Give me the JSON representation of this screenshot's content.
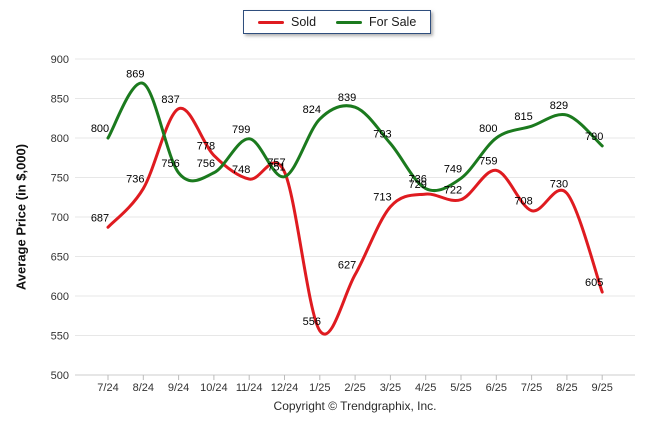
{
  "footer": {
    "copyright": "Copyright © Trendgraphix, Inc."
  },
  "chart_data": {
    "type": "line",
    "title": "",
    "xlabel": "",
    "ylabel": "Average Price (in $,000)",
    "categories": [
      "7/24",
      "8/24",
      "9/24",
      "10/24",
      "11/24",
      "12/24",
      "1/25",
      "2/25",
      "3/25",
      "4/25",
      "5/25",
      "6/25",
      "7/25",
      "8/25",
      "9/25"
    ],
    "series": [
      {
        "name": "Sold",
        "color": "#df1b20",
        "values": [
          687,
          736,
          837,
          778,
          748,
          757,
          556,
          627,
          713,
          729,
          722,
          759,
          708,
          730,
          605
        ]
      },
      {
        "name": "For Sale",
        "color": "#1b7a1e",
        "values": [
          800,
          869,
          756,
          756,
          799,
          751,
          824,
          839,
          793,
          736,
          749,
          800,
          815,
          829,
          790
        ]
      }
    ],
    "ylim": [
      500,
      900
    ],
    "yticks": [
      900,
      850,
      800,
      750,
      700,
      650,
      600,
      550,
      500
    ],
    "grid": "horizontal",
    "legend_position": "top-center",
    "data_labels": true,
    "colors": {
      "gridline": "#e7e7e7",
      "axis_line": "#cccccc",
      "tick": "#bbbbbb",
      "tick_label": "#333333",
      "data_label": "#000000",
      "legend_border": "#2f4e7d"
    }
  }
}
